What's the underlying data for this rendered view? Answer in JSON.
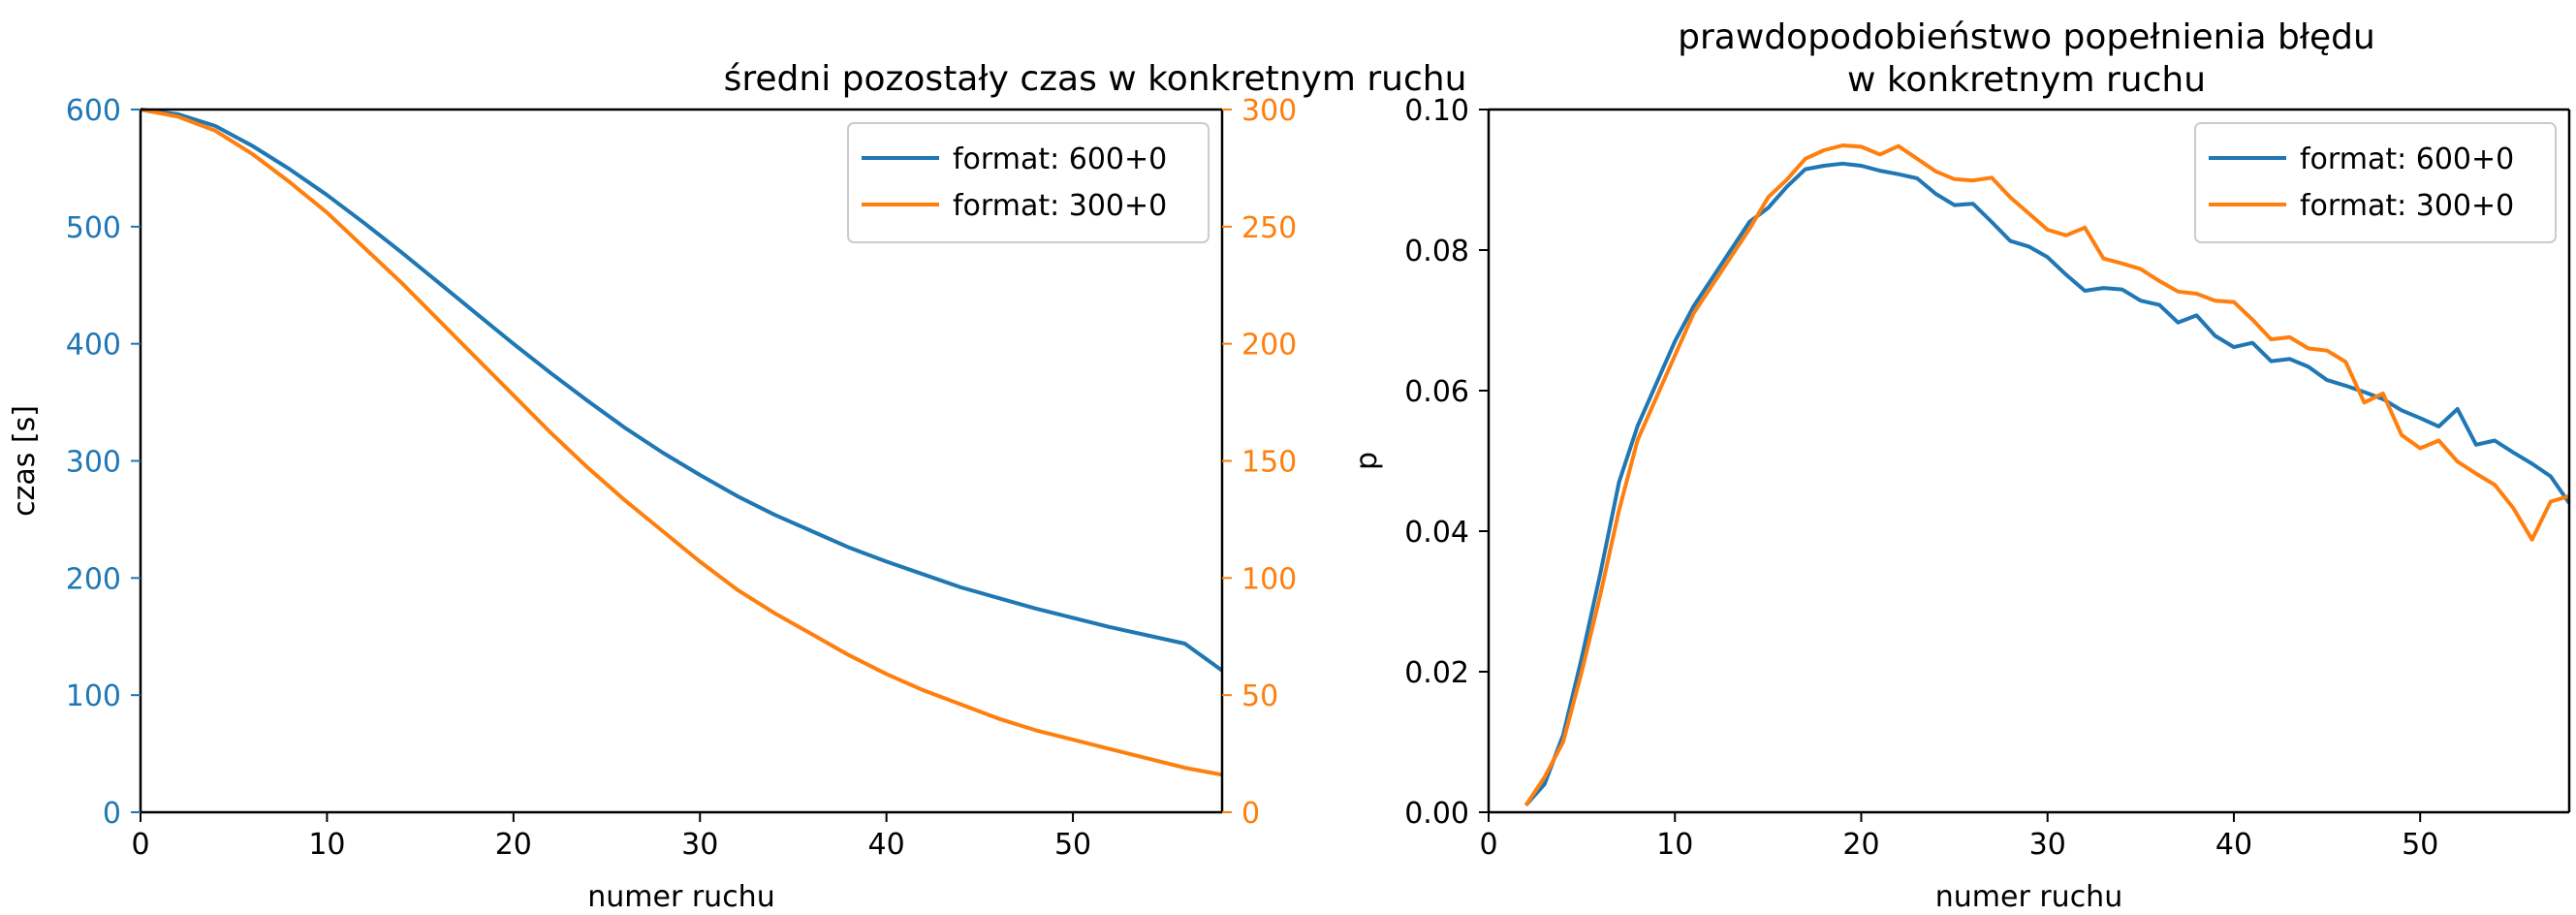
{
  "colors": {
    "blue": "#1f77b4",
    "orange": "#ff7f0e",
    "axis": "#000000"
  },
  "chart_data": [
    {
      "type": "line",
      "title": "średni pozostały czas w konkretnym ruchu",
      "xlabel": "numer ruchu",
      "ylabel": "czas [s]",
      "ylabel_right": "",
      "xlim": [
        0,
        58
      ],
      "ylim": [
        0,
        600
      ],
      "ylim_right": [
        0,
        300
      ],
      "xticks": [
        "0",
        "10",
        "20",
        "30",
        "40",
        "50"
      ],
      "yticks": [
        "0",
        "100",
        "200",
        "300",
        "400",
        "500",
        "600"
      ],
      "yticks_right": [
        "0",
        "50",
        "100",
        "150",
        "200",
        "250",
        "300"
      ],
      "grid": false,
      "legend_position": "top-right",
      "x": [
        0,
        2,
        4,
        6,
        8,
        10,
        12,
        14,
        16,
        18,
        20,
        22,
        24,
        26,
        28,
        30,
        32,
        34,
        36,
        38,
        40,
        42,
        44,
        46,
        48,
        50,
        52,
        54,
        56,
        58
      ],
      "series": [
        {
          "name": "format: 600+0",
          "axis": "left",
          "color": "#1f77b4",
          "values": [
            600,
            596,
            586,
            569,
            549,
            527,
            503,
            478,
            452,
            426,
            400,
            375,
            351,
            328,
            307,
            288,
            270,
            254,
            240,
            226,
            214,
            203,
            192,
            183,
            174,
            166,
            158,
            151,
            144,
            121
          ]
        },
        {
          "name": "format: 300+0",
          "axis": "right",
          "color": "#ff7f0e",
          "values": [
            300,
            297,
            291,
            281,
            269,
            256,
            241,
            226,
            210,
            194,
            178,
            162,
            147,
            133,
            120,
            107,
            95,
            85,
            76,
            67,
            59,
            52,
            46,
            40,
            35,
            31,
            27,
            23,
            19,
            16
          ]
        }
      ]
    },
    {
      "type": "line",
      "title": "prawdopodobieństwo popełnienia błędu\nw konkretnym ruchu",
      "xlabel": "numer ruchu",
      "ylabel": "p",
      "xlim": [
        0,
        58
      ],
      "ylim": [
        0,
        0.1
      ],
      "xticks": [
        "0",
        "10",
        "20",
        "30",
        "40",
        "50"
      ],
      "yticks": [
        "0.00",
        "0.02",
        "0.04",
        "0.06",
        "0.08",
        "0.10"
      ],
      "grid": false,
      "legend_position": "top-right",
      "x": [
        2,
        3,
        4,
        5,
        6,
        7,
        8,
        9,
        10,
        11,
        12,
        13,
        14,
        15,
        16,
        17,
        18,
        19,
        20,
        21,
        22,
        23,
        24,
        25,
        26,
        27,
        28,
        29,
        30,
        31,
        32,
        33,
        34,
        35,
        36,
        37,
        38,
        39,
        40,
        41,
        42,
        43,
        44,
        45,
        46,
        47,
        48,
        49,
        50,
        51,
        52,
        53,
        54,
        55,
        56,
        57,
        58
      ],
      "series": [
        {
          "name": "format: 600+0",
          "color": "#1f77b4",
          "values": [
            0.001,
            0.004,
            0.011,
            0.022,
            0.034,
            0.047,
            0.055,
            0.061,
            0.067,
            0.072,
            0.076,
            0.08,
            0.084,
            0.086,
            0.089,
            0.0915,
            0.092,
            0.0923,
            0.092,
            0.0913,
            0.0908,
            0.0902,
            0.088,
            0.0864,
            0.0866,
            0.084,
            0.0813,
            0.0805,
            0.079,
            0.0765,
            0.0742,
            0.0746,
            0.0744,
            0.0728,
            0.0722,
            0.0697,
            0.0707,
            0.0678,
            0.0662,
            0.0668,
            0.0642,
            0.0645,
            0.0634,
            0.0615,
            0.0607,
            0.0598,
            0.0588,
            0.0572,
            0.0561,
            0.0549,
            0.0574,
            0.0523,
            0.0529,
            0.0512,
            0.0496,
            0.0478,
            0.044
          ]
        },
        {
          "name": "format: 300+0",
          "color": "#ff7f0e",
          "values": [
            0.001,
            0.005,
            0.01,
            0.02,
            0.031,
            0.043,
            0.053,
            0.059,
            0.065,
            0.071,
            0.075,
            0.079,
            0.083,
            0.0875,
            0.09,
            0.093,
            0.0942,
            0.0949,
            0.0947,
            0.0936,
            0.0948,
            0.093,
            0.0912,
            0.0901,
            0.0899,
            0.0903,
            0.0875,
            0.0852,
            0.0829,
            0.0821,
            0.0832,
            0.0788,
            0.0781,
            0.0773,
            0.0756,
            0.0741,
            0.0738,
            0.0728,
            0.0726,
            0.0701,
            0.0673,
            0.0676,
            0.066,
            0.0657,
            0.0641,
            0.0583,
            0.0596,
            0.0537,
            0.0518,
            0.0529,
            0.0499,
            0.0482,
            0.0466,
            0.0433,
            0.0388,
            0.0442,
            0.045
          ]
        }
      ]
    }
  ]
}
